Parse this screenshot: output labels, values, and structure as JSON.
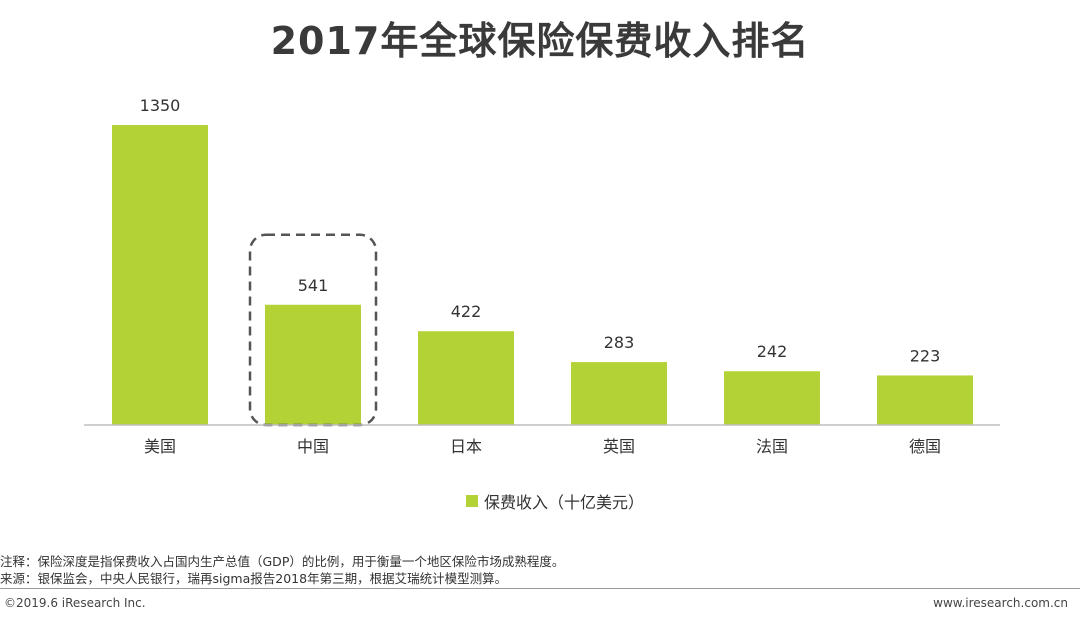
{
  "title": "2017年全球保险保费收入排名",
  "colors": {
    "bar": "#b2d235",
    "axis": "#bfbfbf",
    "highlight_border": "#555555"
  },
  "chart_data": {
    "type": "bar",
    "title": "2017年全球保险保费收入排名",
    "categories": [
      "美国",
      "中国",
      "日本",
      "英国",
      "法国",
      "德国"
    ],
    "series": [
      {
        "name": "保费收入（十亿美元）",
        "values": [
          1350,
          541,
          422,
          283,
          242,
          223
        ]
      }
    ],
    "highlight_category": "中国",
    "ylim": [
      0,
      1350
    ],
    "grid": false,
    "legend_position": "bottom",
    "xlabel": "",
    "ylabel": ""
  },
  "legend": {
    "label": "保费收入（十亿美元）"
  },
  "notes": [
    "注释：保险深度是指保费收入占国内生产总值（GDP）的比例，用于衡量一个地区保险市场成熟程度。",
    "来源：银保监会，中央人民银行，瑞再sigma报告2018年第三期，根据艾瑞统计模型测算。"
  ],
  "footer": {
    "copyright": "©2019.6 iResearch Inc.",
    "website": "www.iresearch.com.cn"
  }
}
